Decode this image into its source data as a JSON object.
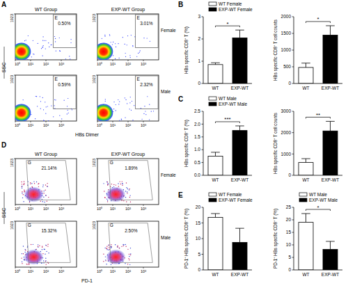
{
  "chart_data": [
    {
      "type": "flow_cytometry",
      "panel_label": "A",
      "title": "WT Group",
      "gate_label": "E",
      "values": [
        0.5
      ],
      "value_labels": [
        "0.50%"
      ],
      "data_labels": true,
      "log": "x",
      "xlim": [
        1,
        10000
      ],
      "xticks": [
        {
          "value": 1,
          "label": "10⁰"
        },
        {
          "value": 10,
          "label": "10¹"
        },
        {
          "value": 100,
          "label": "10²"
        },
        {
          "value": 1000,
          "label": "10³"
        }
      ],
      "ylim": [
        0,
        1023
      ],
      "yticks": [
        1023
      ]
    },
    {
      "type": "flow_cytometry",
      "title": "EXP-WT Group",
      "row_label": "Female",
      "gate_label": "E",
      "values": [
        3.01
      ],
      "value_labels": [
        "3.01%"
      ],
      "data_labels": true,
      "log": "x",
      "xlim": [
        1,
        10000
      ],
      "xticks": [
        {
          "value": 1,
          "label": "10⁰"
        },
        {
          "value": 10,
          "label": "10¹"
        },
        {
          "value": 100,
          "label": "10²"
        },
        {
          "value": 1000,
          "label": "10³"
        }
      ],
      "ylim": [
        0,
        1023
      ],
      "yticks": [
        1023
      ]
    },
    {
      "type": "flow_cytometry",
      "xlabel": "HBs Dimer",
      "ylabel": "SSC",
      "gate_label": "E",
      "values": [
        0.59
      ],
      "value_labels": [
        "0.59%"
      ],
      "data_labels": true,
      "log": "x",
      "xlim": [
        1,
        10000
      ],
      "xticks": [
        {
          "value": 1,
          "label": "10⁰"
        },
        {
          "value": 10,
          "label": "10¹"
        },
        {
          "value": 100,
          "label": "10²"
        },
        {
          "value": 1000,
          "label": "10³"
        }
      ],
      "ylim": [
        0,
        1023
      ],
      "yticks": [
        1023
      ]
    },
    {
      "type": "flow_cytometry",
      "row_label": "Male",
      "gate_label": "E",
      "values": [
        2.32
      ],
      "value_labels": [
        "2.32%"
      ],
      "data_labels": true,
      "log": "x",
      "xlim": [
        1,
        10000
      ],
      "xticks": [
        {
          "value": 1,
          "label": "10⁰"
        },
        {
          "value": 10,
          "label": "10¹"
        },
        {
          "value": 100,
          "label": "10²"
        },
        {
          "value": 1000,
          "label": "10³"
        }
      ],
      "ylim": [
        0,
        1023
      ],
      "yticks": [
        1023
      ]
    },
    {
      "type": "flow_cytometry",
      "panel_label": "D",
      "title": "WT Group",
      "gate_label": "G",
      "values": [
        21.14
      ],
      "value_labels": [
        "21.14%"
      ],
      "data_labels": true,
      "log": "x",
      "xlim": [
        1,
        10000
      ],
      "xticks": [
        {
          "value": 1,
          "label": "10⁰"
        },
        {
          "value": 10,
          "label": "10¹"
        },
        {
          "value": 100,
          "label": "10²"
        },
        {
          "value": 1000,
          "label": "10³"
        }
      ],
      "ylim": [
        0,
        1023
      ],
      "yticks": [
        1023
      ]
    },
    {
      "type": "flow_cytometry",
      "title": "EXP-WT Group",
      "row_label": "Female",
      "gate_label": "G",
      "values": [
        1.89
      ],
      "value_labels": [
        "1.89%"
      ],
      "data_labels": true,
      "log": "x",
      "xlim": [
        1,
        10000
      ],
      "xticks": [
        {
          "value": 1,
          "label": "10⁰"
        },
        {
          "value": 10,
          "label": "10¹"
        },
        {
          "value": 100,
          "label": "10²"
        },
        {
          "value": 1000,
          "label": "10³"
        }
      ],
      "ylim": [
        0,
        1023
      ],
      "yticks": [
        1023
      ]
    },
    {
      "type": "flow_cytometry",
      "xlabel": "PD-1",
      "ylabel": "SSC",
      "gate_label": "G",
      "values": [
        15.32
      ],
      "value_labels": [
        "15.32%"
      ],
      "data_labels": true,
      "log": "x",
      "xlim": [
        1,
        10000
      ],
      "xticks": [
        {
          "value": 1,
          "label": "10⁰"
        },
        {
          "value": 10,
          "label": "10¹"
        },
        {
          "value": 100,
          "label": "10²"
        },
        {
          "value": 1000,
          "label": "10³"
        }
      ],
      "ylim": [
        0,
        1023
      ],
      "yticks": [
        1023
      ]
    },
    {
      "type": "flow_cytometry",
      "row_label": "Male",
      "gate_label": "G",
      "values": [
        2.5
      ],
      "value_labels": [
        "2.50%"
      ],
      "data_labels": true,
      "log": "x",
      "xlim": [
        1,
        10000
      ],
      "xticks": [
        {
          "value": 1,
          "label": "10⁰"
        },
        {
          "value": 10,
          "label": "10¹"
        },
        {
          "value": 100,
          "label": "10²"
        },
        {
          "value": 1000,
          "label": "10³"
        }
      ],
      "ylim": [
        0,
        1023
      ],
      "yticks": [
        1023
      ]
    },
    {
      "type": "bar",
      "panel_label": "B",
      "ylabel": "HBs specific CD8⁺ T (%)",
      "categories": [
        "WT",
        "EXP-WT"
      ],
      "legend": "top-left",
      "significance": "*",
      "series": [
        {
          "name": "WT Female",
          "color": "#ffffff",
          "values": [
            0.85,
            null
          ],
          "errors": [
            0.08,
            null
          ]
        },
        {
          "name": "EXP-WT Female",
          "color": "#000000",
          "values": [
            null,
            2.05
          ],
          "errors": [
            null,
            0.35
          ]
        }
      ],
      "ylim": [
        0,
        3
      ],
      "yticks": [
        0,
        1,
        2,
        3
      ]
    },
    {
      "type": "bar",
      "ylabel": "HBs specific CD8⁺ T cell counts",
      "categories": [
        "WT",
        "EXP-WT"
      ],
      "significance": "*",
      "values": [
        480,
        1450
      ],
      "errors": [
        130,
        280
      ],
      "colors": [
        "#ffffff",
        "#000000"
      ],
      "ylim": [
        0,
        2000
      ],
      "yticks": [
        0,
        500,
        1000,
        1500,
        2000
      ]
    },
    {
      "type": "bar",
      "panel_label": "C",
      "ylabel": "HBs specific CD8⁺ T (%)",
      "categories": [
        "WT",
        "EXP-WT"
      ],
      "legend": "top-left",
      "significance": "***",
      "series": [
        {
          "name": "WT Male",
          "color": "#ffffff",
          "values": [
            0.75,
            null
          ],
          "errors": [
            0.15,
            null
          ]
        },
        {
          "name": "EXP-WT Male",
          "color": "#000000",
          "values": [
            null,
            1.75
          ],
          "errors": [
            null,
            0.18
          ]
        }
      ],
      "ylim": [
        0,
        2.5
      ],
      "yticks": [
        {
          "value": 0,
          "label": "0.0"
        },
        0.5,
        {
          "value": 1,
          "label": "1.0"
        },
        1.5,
        {
          "value": 2,
          "label": "2.0"
        },
        2.5
      ]
    },
    {
      "type": "bar",
      "ylabel": "HBs specific CD8⁺ T cell counts",
      "categories": [
        "WT",
        "EXP-WT"
      ],
      "significance": "**",
      "values": [
        600,
        2080
      ],
      "errors": [
        180,
        450
      ],
      "colors": [
        "#ffffff",
        "#000000"
      ],
      "ylim": [
        0,
        3000
      ],
      "yticks": [
        0,
        1000,
        2000,
        3000
      ]
    },
    {
      "type": "bar",
      "panel_label": "E",
      "ylabel": "PD-1⁺ HBs specific CD8⁺ T (%)",
      "categories": [
        "WT",
        "EXP-WT"
      ],
      "legend": "top-left",
      "series": [
        {
          "name": "WT Female",
          "color": "#ffffff",
          "values": [
            16.8,
            null
          ],
          "errors": [
            1.2,
            null
          ]
        },
        {
          "name": "EXP-WT Female",
          "color": "#000000",
          "values": [
            null,
            8.8
          ],
          "errors": [
            null,
            4.5
          ]
        }
      ],
      "ylim": [
        0,
        20
      ],
      "yticks": [
        0,
        5,
        10,
        15,
        20
      ]
    },
    {
      "type": "bar",
      "ylabel": "PD-1⁺ HBs specific CD8⁺ T (%)",
      "categories": [
        "WT",
        "EXP-WT"
      ],
      "legend": "top-left",
      "significance": "*",
      "series": [
        {
          "name": "WT Male",
          "color": "#ffffff",
          "values": [
            19,
            null
          ],
          "errors": [
            3.5,
            null
          ]
        },
        {
          "name": "EXP-WT Male",
          "color": "#000000",
          "values": [
            null,
            8.2
          ],
          "errors": [
            null,
            3.2
          ]
        }
      ],
      "ylim": [
        0,
        25
      ],
      "yticks": [
        0,
        5,
        10,
        15,
        20,
        25
      ]
    }
  ]
}
